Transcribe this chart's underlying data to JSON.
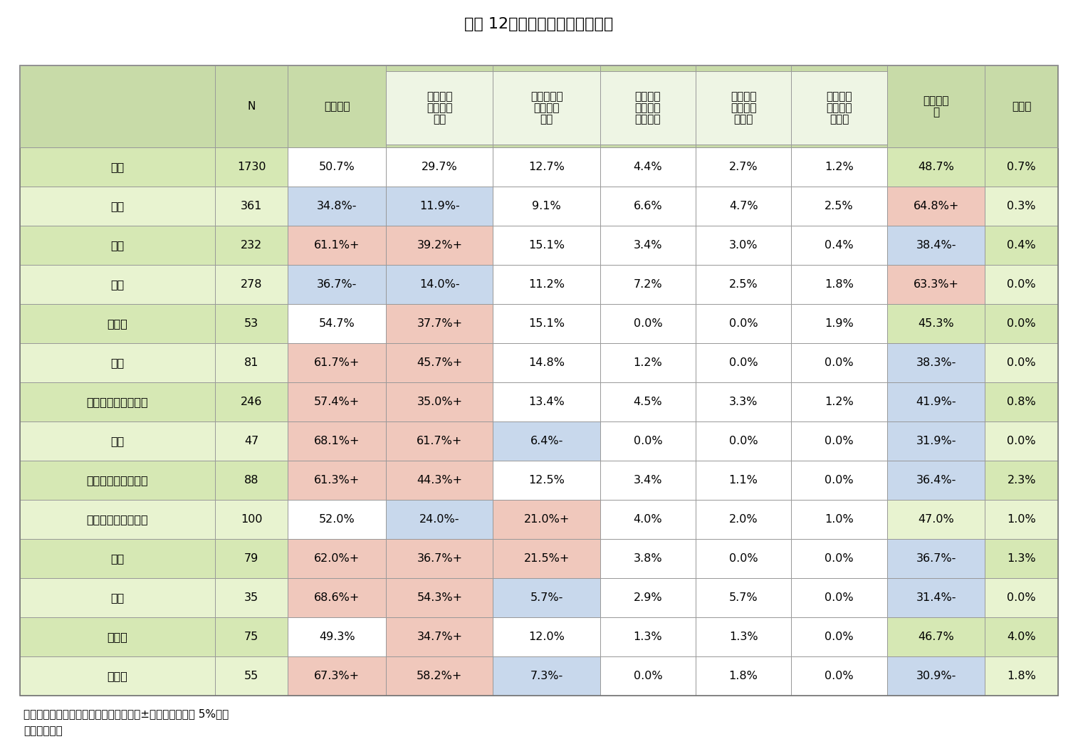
{
  "title": "図表 12　地域別にみた運転頻度",
  "col_headers_line1": [
    "",
    "N",
    "運転する",
    "ほとんど",
    "週に２、３",
    "週に１回",
    "月に数回",
    "年に数回",
    "運転しな",
    "無回答"
  ],
  "col_headers_line2": [
    "",
    "",
    "",
    "毎日運転",
    "回は運転",
    "くらいは",
    "しか運転",
    "しか運転",
    "い",
    ""
  ],
  "col_headers_line3": [
    "",
    "",
    "",
    "する",
    "する",
    "運転する",
    "しない",
    "しない",
    "",
    ""
  ],
  "rows": [
    [
      "全体",
      "1730",
      "50.7%",
      "29.7%",
      "12.7%",
      "4.4%",
      "2.7%",
      "1.2%",
      "48.7%",
      "0.7%"
    ],
    [
      "東京",
      "361",
      "34.8%-",
      "11.9%-",
      "9.1%",
      "6.6%",
      "4.7%",
      "2.5%",
      "64.8%+",
      "0.3%"
    ],
    [
      "愛知",
      "232",
      "61.1%+",
      "39.2%+",
      "15.1%",
      "3.4%",
      "3.0%",
      "0.4%",
      "38.4%-",
      "0.4%"
    ],
    [
      "大阪",
      "278",
      "36.7%-",
      "14.0%-",
      "11.2%",
      "7.2%",
      "2.5%",
      "1.8%",
      "63.3%+",
      "0.0%"
    ],
    [
      "北海道",
      "53",
      "54.7%",
      "37.7%+",
      "15.1%",
      "0.0%",
      "0.0%",
      "1.9%",
      "45.3%",
      "0.0%"
    ],
    [
      "東北",
      "81",
      "61.7%+",
      "45.7%+",
      "14.8%",
      "1.2%",
      "0.0%",
      "0.0%",
      "38.3%-",
      "0.0%"
    ],
    [
      "関東（東京都除く）",
      "246",
      "57.4%+",
      "35.0%+",
      "13.4%",
      "4.5%",
      "3.3%",
      "1.2%",
      "41.9%-",
      "0.8%"
    ],
    [
      "北陸",
      "47",
      "68.1%+",
      "61.7%+",
      "6.4%-",
      "0.0%",
      "0.0%",
      "0.0%",
      "31.9%-",
      "0.0%"
    ],
    [
      "中部（愛知県除く）",
      "88",
      "61.3%+",
      "44.3%+",
      "12.5%",
      "3.4%",
      "1.1%",
      "0.0%",
      "36.4%-",
      "2.3%"
    ],
    [
      "近畿（大阪府除く）",
      "100",
      "52.0%",
      "24.0%-",
      "21.0%+",
      "4.0%",
      "2.0%",
      "1.0%",
      "47.0%",
      "1.0%"
    ],
    [
      "中国",
      "79",
      "62.0%+",
      "36.7%+",
      "21.5%+",
      "3.8%",
      "0.0%",
      "0.0%",
      "36.7%-",
      "1.3%"
    ],
    [
      "四国",
      "35",
      "68.6%+",
      "54.3%+",
      "5.7%-",
      "2.9%",
      "5.7%",
      "0.0%",
      "31.4%-",
      "0.0%"
    ],
    [
      "北九州",
      "75",
      "49.3%",
      "34.7%+",
      "12.0%",
      "1.3%",
      "1.3%",
      "0.0%",
      "46.7%",
      "4.0%"
    ],
    [
      "南九州",
      "55",
      "67.3%+",
      "58.2%+",
      "7.3%-",
      "0.0%",
      "1.8%",
      "0.0%",
      "30.9%-",
      "1.8%"
    ]
  ],
  "cell_bg": [
    [
      0,
      0,
      "g1"
    ],
    [
      0,
      1,
      "g1"
    ],
    [
      0,
      2,
      "w"
    ],
    [
      0,
      3,
      "w"
    ],
    [
      0,
      4,
      "w"
    ],
    [
      0,
      5,
      "w"
    ],
    [
      0,
      6,
      "w"
    ],
    [
      0,
      7,
      "w"
    ],
    [
      0,
      8,
      "g1"
    ],
    [
      0,
      9,
      "g1"
    ],
    [
      1,
      0,
      "g2"
    ],
    [
      1,
      1,
      "g2"
    ],
    [
      1,
      2,
      "bl"
    ],
    [
      1,
      3,
      "bl"
    ],
    [
      1,
      4,
      "w"
    ],
    [
      1,
      5,
      "w"
    ],
    [
      1,
      6,
      "w"
    ],
    [
      1,
      7,
      "w"
    ],
    [
      1,
      8,
      "pk"
    ],
    [
      1,
      9,
      "g2"
    ],
    [
      2,
      0,
      "g1"
    ],
    [
      2,
      1,
      "g1"
    ],
    [
      2,
      2,
      "pk"
    ],
    [
      2,
      3,
      "pk"
    ],
    [
      2,
      4,
      "w"
    ],
    [
      2,
      5,
      "w"
    ],
    [
      2,
      6,
      "w"
    ],
    [
      2,
      7,
      "w"
    ],
    [
      2,
      8,
      "bl"
    ],
    [
      2,
      9,
      "g1"
    ],
    [
      3,
      0,
      "g2"
    ],
    [
      3,
      1,
      "g2"
    ],
    [
      3,
      2,
      "bl"
    ],
    [
      3,
      3,
      "bl"
    ],
    [
      3,
      4,
      "w"
    ],
    [
      3,
      5,
      "w"
    ],
    [
      3,
      6,
      "w"
    ],
    [
      3,
      7,
      "w"
    ],
    [
      3,
      8,
      "pk"
    ],
    [
      3,
      9,
      "g2"
    ],
    [
      4,
      0,
      "g1"
    ],
    [
      4,
      1,
      "g1"
    ],
    [
      4,
      2,
      "w"
    ],
    [
      4,
      3,
      "pk"
    ],
    [
      4,
      4,
      "w"
    ],
    [
      4,
      5,
      "w"
    ],
    [
      4,
      6,
      "w"
    ],
    [
      4,
      7,
      "w"
    ],
    [
      4,
      8,
      "g1"
    ],
    [
      4,
      9,
      "g1"
    ],
    [
      5,
      0,
      "g2"
    ],
    [
      5,
      1,
      "g2"
    ],
    [
      5,
      2,
      "pk"
    ],
    [
      5,
      3,
      "pk"
    ],
    [
      5,
      4,
      "w"
    ],
    [
      5,
      5,
      "w"
    ],
    [
      5,
      6,
      "w"
    ],
    [
      5,
      7,
      "w"
    ],
    [
      5,
      8,
      "bl"
    ],
    [
      5,
      9,
      "g2"
    ],
    [
      6,
      0,
      "g1"
    ],
    [
      6,
      1,
      "g1"
    ],
    [
      6,
      2,
      "pk"
    ],
    [
      6,
      3,
      "pk"
    ],
    [
      6,
      4,
      "w"
    ],
    [
      6,
      5,
      "w"
    ],
    [
      6,
      6,
      "w"
    ],
    [
      6,
      7,
      "w"
    ],
    [
      6,
      8,
      "bl"
    ],
    [
      6,
      9,
      "g1"
    ],
    [
      7,
      0,
      "g2"
    ],
    [
      7,
      1,
      "g2"
    ],
    [
      7,
      2,
      "pk"
    ],
    [
      7,
      3,
      "pk"
    ],
    [
      7,
      4,
      "bl"
    ],
    [
      7,
      5,
      "w"
    ],
    [
      7,
      6,
      "w"
    ],
    [
      7,
      7,
      "w"
    ],
    [
      7,
      8,
      "bl"
    ],
    [
      7,
      9,
      "g2"
    ],
    [
      8,
      0,
      "g1"
    ],
    [
      8,
      1,
      "g1"
    ],
    [
      8,
      2,
      "pk"
    ],
    [
      8,
      3,
      "pk"
    ],
    [
      8,
      4,
      "w"
    ],
    [
      8,
      5,
      "w"
    ],
    [
      8,
      6,
      "w"
    ],
    [
      8,
      7,
      "w"
    ],
    [
      8,
      8,
      "bl"
    ],
    [
      8,
      9,
      "g1"
    ],
    [
      9,
      0,
      "g2"
    ],
    [
      9,
      1,
      "g2"
    ],
    [
      9,
      2,
      "w"
    ],
    [
      9,
      3,
      "bl"
    ],
    [
      9,
      4,
      "pk"
    ],
    [
      9,
      5,
      "w"
    ],
    [
      9,
      6,
      "w"
    ],
    [
      9,
      7,
      "w"
    ],
    [
      9,
      8,
      "g2"
    ],
    [
      9,
      9,
      "g2"
    ],
    [
      10,
      0,
      "g1"
    ],
    [
      10,
      1,
      "g1"
    ],
    [
      10,
      2,
      "pk"
    ],
    [
      10,
      3,
      "pk"
    ],
    [
      10,
      4,
      "pk"
    ],
    [
      10,
      5,
      "w"
    ],
    [
      10,
      6,
      "w"
    ],
    [
      10,
      7,
      "w"
    ],
    [
      10,
      8,
      "bl"
    ],
    [
      10,
      9,
      "g1"
    ],
    [
      11,
      0,
      "g2"
    ],
    [
      11,
      1,
      "g2"
    ],
    [
      11,
      2,
      "pk"
    ],
    [
      11,
      3,
      "pk"
    ],
    [
      11,
      4,
      "bl"
    ],
    [
      11,
      5,
      "w"
    ],
    [
      11,
      6,
      "w"
    ],
    [
      11,
      7,
      "w"
    ],
    [
      11,
      8,
      "bl"
    ],
    [
      11,
      9,
      "g2"
    ],
    [
      12,
      0,
      "g1"
    ],
    [
      12,
      1,
      "g1"
    ],
    [
      12,
      2,
      "w"
    ],
    [
      12,
      3,
      "pk"
    ],
    [
      12,
      4,
      "w"
    ],
    [
      12,
      5,
      "w"
    ],
    [
      12,
      6,
      "w"
    ],
    [
      12,
      7,
      "w"
    ],
    [
      12,
      8,
      "g1"
    ],
    [
      12,
      9,
      "g1"
    ],
    [
      13,
      0,
      "g2"
    ],
    [
      13,
      1,
      "g2"
    ],
    [
      13,
      2,
      "pk"
    ],
    [
      13,
      3,
      "pk"
    ],
    [
      13,
      4,
      "bl"
    ],
    [
      13,
      5,
      "w"
    ],
    [
      13,
      6,
      "w"
    ],
    [
      13,
      7,
      "w"
    ],
    [
      13,
      8,
      "bl"
    ],
    [
      13,
      9,
      "g2"
    ]
  ],
  "color_map": {
    "g1": "#d6e8b4",
    "g2": "#e8f3d0",
    "w": "#ffffff",
    "bl": "#c8d8ec",
    "pk": "#f0c8bc",
    "gh": "#c8dba8"
  },
  "footer_notes": [
    "（備考）全体より有意に差があるものに±表記（有意水準 5%）。",
    "（資料）同上"
  ],
  "title_fontsize": 16,
  "body_fontsize": 11.5,
  "header_fontsize": 11
}
